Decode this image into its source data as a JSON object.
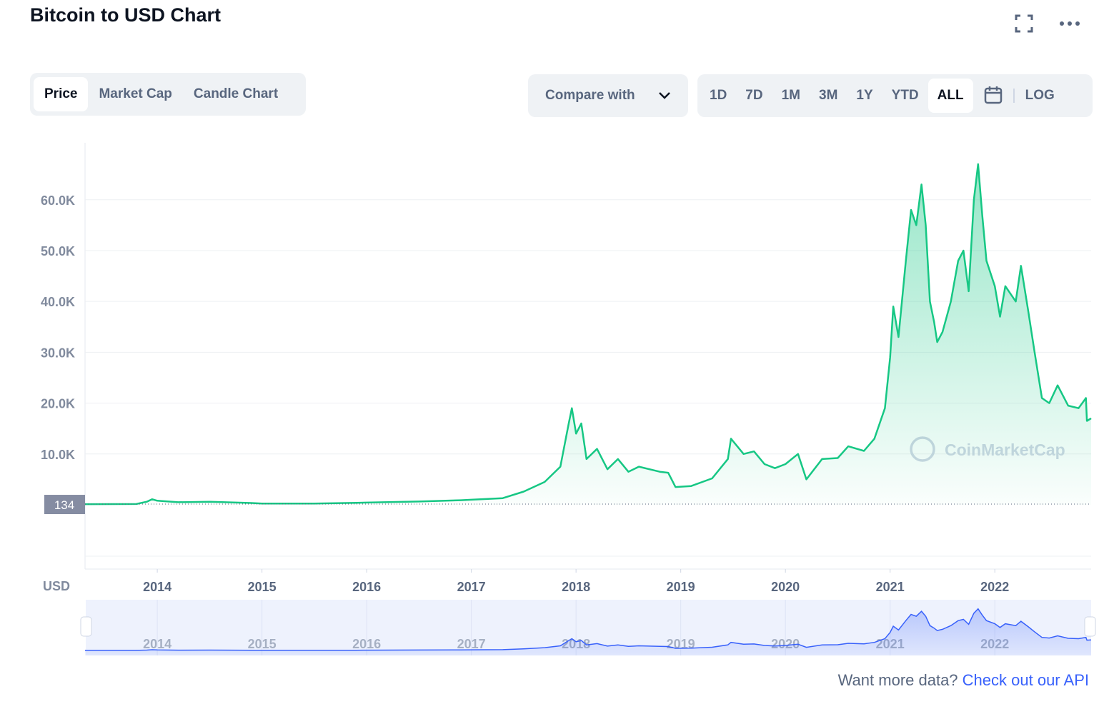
{
  "title": "Bitcoin to USD Chart",
  "tabs": [
    "Price",
    "Market Cap",
    "Candle Chart"
  ],
  "active_tab": "Price",
  "compare": "Compare with",
  "ranges": [
    "1D",
    "7D",
    "1M",
    "3M",
    "1Y",
    "YTD",
    "ALL"
  ],
  "active_range": "ALL",
  "log_label": "LOG",
  "chart_data": {
    "type": "line",
    "y_axis_label": "USD",
    "watermark": "CoinMarketCap",
    "color": "#16c784",
    "x": [
      2013.31,
      2013.8,
      2013.9,
      2013.95,
      2014.0,
      2014.2,
      2014.5,
      2014.9,
      2015.0,
      2015.5,
      2015.9,
      2016.0,
      2016.5,
      2016.9,
      2017.0,
      2017.3,
      2017.5,
      2017.7,
      2017.85,
      2017.93,
      2017.96,
      2018.0,
      2018.05,
      2018.1,
      2018.2,
      2018.3,
      2018.4,
      2018.5,
      2018.6,
      2018.8,
      2018.88,
      2018.95,
      2019.1,
      2019.3,
      2019.45,
      2019.48,
      2019.6,
      2019.7,
      2019.8,
      2019.9,
      2020.0,
      2020.12,
      2020.2,
      2020.35,
      2020.5,
      2020.6,
      2020.75,
      2020.85,
      2020.95,
      2021.0,
      2021.03,
      2021.08,
      2021.15,
      2021.2,
      2021.25,
      2021.3,
      2021.34,
      2021.38,
      2021.42,
      2021.45,
      2021.5,
      2021.58,
      2021.65,
      2021.7,
      2021.75,
      2021.8,
      2021.84,
      2021.88,
      2021.92,
      2022.0,
      2022.05,
      2022.1,
      2022.2,
      2022.25,
      2022.32,
      2022.38,
      2022.45,
      2022.52,
      2022.6,
      2022.7,
      2022.8,
      2022.87,
      2022.88,
      2022.92
    ],
    "values": [
      120,
      150,
      600,
      1100,
      800,
      500,
      600,
      350,
      250,
      250,
      400,
      430,
      650,
      900,
      1000,
      1300,
      2600,
      4500,
      7500,
      16000,
      19000,
      14000,
      16000,
      9000,
      11000,
      7000,
      9000,
      6500,
      7500,
      6500,
      6300,
      3500,
      3700,
      5200,
      9000,
      13000,
      10000,
      10500,
      8000,
      7200,
      8000,
      10000,
      5000,
      9000,
      9200,
      11500,
      10600,
      13000,
      19000,
      29000,
      39000,
      33000,
      48000,
      58000,
      55000,
      63000,
      55000,
      40000,
      36000,
      32000,
      34000,
      40000,
      48000,
      50000,
      42000,
      60000,
      67000,
      57000,
      48000,
      43000,
      37000,
      43000,
      40000,
      47000,
      38000,
      30000,
      21000,
      20000,
      23500,
      19500,
      19000,
      21000,
      16500,
      17000
    ],
    "xlim": [
      2013.31,
      2022.92
    ],
    "xticks": [
      2014,
      2015,
      2016,
      2017,
      2018,
      2019,
      2020,
      2021,
      2022
    ],
    "ylim": [
      0,
      71200
    ],
    "yticks": [
      {
        "value": 10000,
        "label": "10.0K"
      },
      {
        "value": 20000,
        "label": "20.0K"
      },
      {
        "value": 30000,
        "label": "30.0K"
      },
      {
        "value": 40000,
        "label": "40.0K"
      },
      {
        "value": 50000,
        "label": "50.0K"
      },
      {
        "value": 60000,
        "label": "60.0K"
      }
    ],
    "marker": 134,
    "grid": true
  },
  "footer": {
    "text": "Want more data?",
    "link": "Check out our API"
  }
}
